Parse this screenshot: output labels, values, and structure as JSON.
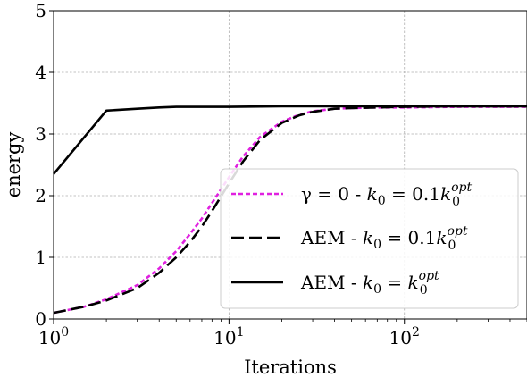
{
  "chart_data": {
    "type": "line",
    "xlabel": "Iterations",
    "ylabel": "energy",
    "x_scale": "log",
    "xlim": [
      1,
      500
    ],
    "ylim": [
      0,
      5
    ],
    "grid": true,
    "legend_position": "lower-right",
    "x_ticks": [
      {
        "value": 1,
        "base": "10",
        "exp": "0"
      },
      {
        "value": 10,
        "base": "10",
        "exp": "1"
      },
      {
        "value": 100,
        "base": "10",
        "exp": "2"
      }
    ],
    "y_ticks": [
      {
        "value": 0,
        "label": "0"
      },
      {
        "value": 1,
        "label": "1"
      },
      {
        "value": 2,
        "label": "2"
      },
      {
        "value": 3,
        "label": "3"
      },
      {
        "value": 4,
        "label": "4"
      },
      {
        "value": 5,
        "label": "5"
      }
    ],
    "series": [
      {
        "legend": {
          "lhs": "γ = 0 - ",
          "k": "k",
          "k_sub": "0",
          "eq": " = 0.1",
          "k2_sup": "opt",
          "k2_sub": "0"
        },
        "color": "#e020e0",
        "style": "dotted",
        "x": [
          1,
          1.5,
          2,
          3,
          4,
          5,
          6,
          7,
          8,
          10,
          12,
          15,
          20,
          25,
          30,
          40,
          50,
          70,
          100,
          200,
          500
        ],
        "y": [
          0.1,
          0.2,
          0.32,
          0.55,
          0.82,
          1.1,
          1.38,
          1.63,
          1.88,
          2.3,
          2.63,
          2.95,
          3.2,
          3.31,
          3.37,
          3.41,
          3.42,
          3.43,
          3.43,
          3.44,
          3.44
        ]
      },
      {
        "legend": {
          "lhs": "AEM - ",
          "k": "k",
          "k_sub": "0",
          "eq": " = 0.1",
          "k2_sup": "opt",
          "k2_sub": "0"
        },
        "color": "#000000",
        "style": "dashed",
        "x": [
          1,
          1.5,
          2,
          3,
          4,
          5,
          6,
          7,
          8,
          10,
          12,
          15,
          20,
          25,
          30,
          40,
          50,
          70,
          100,
          200,
          500
        ],
        "y": [
          0.1,
          0.2,
          0.3,
          0.5,
          0.75,
          1.0,
          1.25,
          1.5,
          1.75,
          2.2,
          2.55,
          2.9,
          3.18,
          3.3,
          3.36,
          3.41,
          3.42,
          3.43,
          3.44,
          3.45,
          3.45
        ]
      },
      {
        "legend": {
          "lhs": "AEM - ",
          "k": "k",
          "k_sub": "0",
          "eq": " = ",
          "k2_sup": "opt",
          "k2_sub": "0"
        },
        "color": "#000000",
        "style": "solid",
        "x": [
          1,
          2,
          3,
          4,
          5,
          7,
          10,
          20,
          50,
          100,
          200,
          500
        ],
        "y": [
          2.35,
          3.38,
          3.41,
          3.43,
          3.44,
          3.44,
          3.44,
          3.45,
          3.45,
          3.45,
          3.45,
          3.45
        ]
      }
    ]
  }
}
